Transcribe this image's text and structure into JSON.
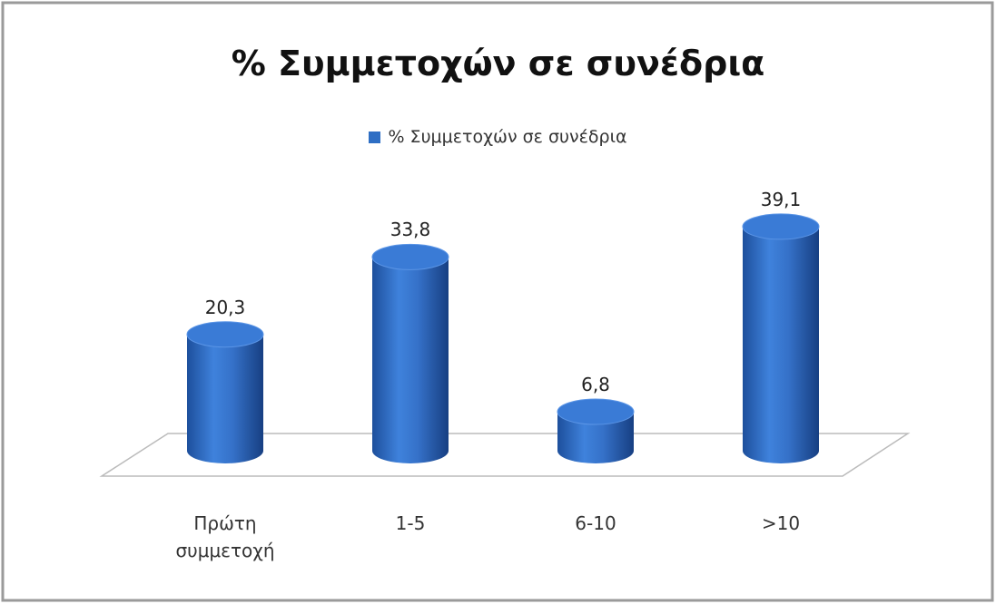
{
  "chart_data": {
    "type": "bar3d",
    "title": "% Συμμετοχών σε συνέδρια",
    "categories": [
      "Πρώτη συμμετοχή",
      "1-5",
      "6-10",
      ">10"
    ],
    "series": [
      {
        "name": "% Συμμετοχών σε συνέδρια",
        "color": "#2e6ec4",
        "values": [
          20.3,
          33.8,
          6.8,
          39.1
        ],
        "value_labels": [
          "20,3",
          "33,8",
          "6,8",
          "39,1"
        ]
      }
    ]
  }
}
